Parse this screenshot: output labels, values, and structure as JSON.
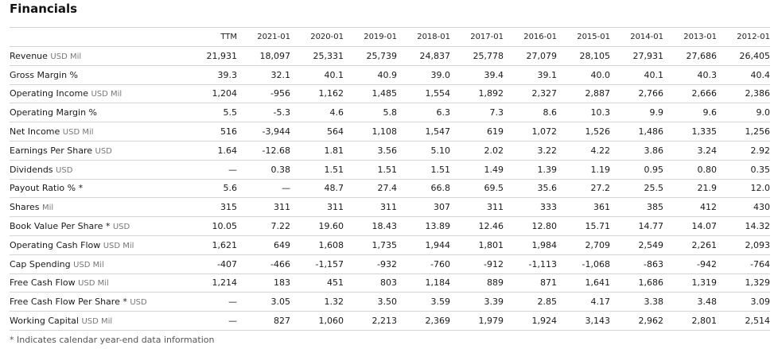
{
  "title": "Financials",
  "columns": [
    "TTM",
    "2021-01",
    "2020-01",
    "2019-01",
    "2018-01",
    "2017-01",
    "2016-01",
    "2015-01",
    "2014-01",
    "2013-01",
    "2012-01"
  ],
  "rows": [
    {
      "label": "Revenue",
      "unit": "USD Mil",
      "values": [
        "21,931",
        "18,097",
        "25,331",
        "25,739",
        "24,837",
        "25,778",
        "27,079",
        "28,105",
        "27,931",
        "27,686",
        "26,405"
      ]
    },
    {
      "label": "Gross Margin %",
      "unit": "",
      "values": [
        "39.3",
        "32.1",
        "40.1",
        "40.9",
        "39.0",
        "39.4",
        "39.1",
        "40.0",
        "40.1",
        "40.3",
        "40.4"
      ]
    },
    {
      "label": "Operating Income",
      "unit": "USD Mil",
      "values": [
        "1,204",
        "-956",
        "1,162",
        "1,485",
        "1,554",
        "1,892",
        "2,327",
        "2,887",
        "2,766",
        "2,666",
        "2,386"
      ]
    },
    {
      "label": "Operating Margin %",
      "unit": "",
      "values": [
        "5.5",
        "-5.3",
        "4.6",
        "5.8",
        "6.3",
        "7.3",
        "8.6",
        "10.3",
        "9.9",
        "9.6",
        "9.0"
      ]
    },
    {
      "label": "Net Income",
      "unit": "USD Mil",
      "values": [
        "516",
        "-3,944",
        "564",
        "1,108",
        "1,547",
        "619",
        "1,072",
        "1,526",
        "1,486",
        "1,335",
        "1,256"
      ]
    },
    {
      "label": "Earnings Per Share",
      "unit": "USD",
      "values": [
        "1.64",
        "-12.68",
        "1.81",
        "3.56",
        "5.10",
        "2.02",
        "3.22",
        "4.22",
        "3.86",
        "3.24",
        "2.92"
      ]
    },
    {
      "label": "Dividends",
      "unit": "USD",
      "values": [
        "—",
        "0.38",
        "1.51",
        "1.51",
        "1.51",
        "1.49",
        "1.39",
        "1.19",
        "0.95",
        "0.80",
        "0.35"
      ]
    },
    {
      "label": "Payout Ratio % *",
      "unit": "",
      "values": [
        "5.6",
        "—",
        "48.7",
        "27.4",
        "66.8",
        "69.5",
        "35.6",
        "27.2",
        "25.5",
        "21.9",
        "12.0"
      ]
    },
    {
      "label": "Shares",
      "unit": "Mil",
      "values": [
        "315",
        "311",
        "311",
        "311",
        "307",
        "311",
        "333",
        "361",
        "385",
        "412",
        "430"
      ]
    },
    {
      "label": "Book Value Per Share *",
      "unit": "USD",
      "values": [
        "10.05",
        "7.22",
        "19.60",
        "18.43",
        "13.89",
        "12.46",
        "12.80",
        "15.71",
        "14.77",
        "14.07",
        "14.32"
      ]
    },
    {
      "label": "Operating Cash Flow",
      "unit": "USD Mil",
      "values": [
        "1,621",
        "649",
        "1,608",
        "1,735",
        "1,944",
        "1,801",
        "1,984",
        "2,709",
        "2,549",
        "2,261",
        "2,093"
      ]
    },
    {
      "label": "Cap Spending",
      "unit": "USD Mil",
      "values": [
        "-407",
        "-466",
        "-1,157",
        "-932",
        "-760",
        "-912",
        "-1,113",
        "-1,068",
        "-863",
        "-942",
        "-764"
      ]
    },
    {
      "label": "Free Cash Flow",
      "unit": "USD Mil",
      "values": [
        "1,214",
        "183",
        "451",
        "803",
        "1,184",
        "889",
        "871",
        "1,641",
        "1,686",
        "1,319",
        "1,329"
      ]
    },
    {
      "label": "Free Cash Flow Per Share *",
      "unit": "USD",
      "values": [
        "—",
        "3.05",
        "1.32",
        "3.50",
        "3.59",
        "3.39",
        "2.85",
        "4.17",
        "3.38",
        "3.48",
        "3.09"
      ]
    },
    {
      "label": "Working Capital",
      "unit": "USD Mil",
      "values": [
        "—",
        "827",
        "1,060",
        "2,213",
        "2,369",
        "1,979",
        "1,924",
        "3,143",
        "2,962",
        "2,801",
        "2,514"
      ]
    }
  ],
  "footnote": "* Indicates calendar year-end data information"
}
